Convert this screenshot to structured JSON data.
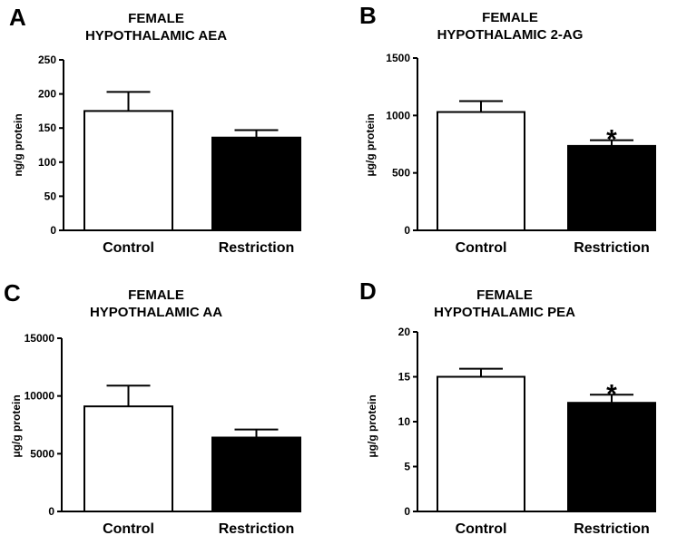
{
  "chart_data": [
    {
      "panel": "A",
      "type": "bar",
      "title_line1": "FEMALE",
      "title_line2": "HYPOTHALAMIC AEA",
      "ylabel": "ng/g protein",
      "categories": [
        "Control",
        "Restriction"
      ],
      "values": [
        175,
        136
      ],
      "errors": [
        28,
        11
      ],
      "significance": [
        "",
        ""
      ],
      "ylim": [
        0,
        250
      ],
      "yticks": [
        0,
        50,
        100,
        150,
        200,
        250
      ],
      "ytick_labels": [
        "0",
        "50",
        "100",
        "150",
        "200",
        "250"
      ],
      "bar_colors": [
        "#ffffff",
        "#000000"
      ]
    },
    {
      "panel": "B",
      "type": "bar",
      "title_line1": "FEMALE",
      "title_line2": "HYPOTHALAMIC 2-AG",
      "ylabel": "μg/g protein",
      "categories": [
        "Control",
        "Restriction"
      ],
      "values": [
        1030,
        735
      ],
      "errors": [
        95,
        50
      ],
      "significance": [
        "",
        "*"
      ],
      "ylim": [
        0,
        1500
      ],
      "yticks": [
        0,
        500,
        1000,
        1500
      ],
      "ytick_labels": [
        "0",
        "500",
        "1000",
        "1500"
      ],
      "bar_colors": [
        "#ffffff",
        "#000000"
      ]
    },
    {
      "panel": "C",
      "type": "bar",
      "title_line1": "FEMALE",
      "title_line2": "HYPOTHALAMIC AA",
      "ylabel": "μg/g protein",
      "categories": [
        "Control",
        "Restriction"
      ],
      "values": [
        9100,
        6400
      ],
      "errors": [
        1800,
        700
      ],
      "significance": [
        "",
        ""
      ],
      "ylim": [
        0,
        15000
      ],
      "yticks": [
        0,
        5000,
        10000,
        15000
      ],
      "ytick_labels": [
        "0",
        "5000",
        "10000",
        "15000"
      ],
      "bar_colors": [
        "#ffffff",
        "#000000"
      ]
    },
    {
      "panel": "D",
      "type": "bar",
      "title_line1": "FEMALE",
      "title_line2": "HYPOTHALAMIC PEA",
      "ylabel": "μg/g protein",
      "categories": [
        "Control",
        "Restriction"
      ],
      "values": [
        15.0,
        12.1
      ],
      "errors": [
        0.9,
        0.9
      ],
      "significance": [
        "",
        "*"
      ],
      "ylim": [
        0,
        20
      ],
      "yticks": [
        0,
        5,
        10,
        15,
        20
      ],
      "ytick_labels": [
        "0",
        "5",
        "10",
        "15",
        "20"
      ],
      "bar_colors": [
        "#ffffff",
        "#000000"
      ]
    }
  ]
}
